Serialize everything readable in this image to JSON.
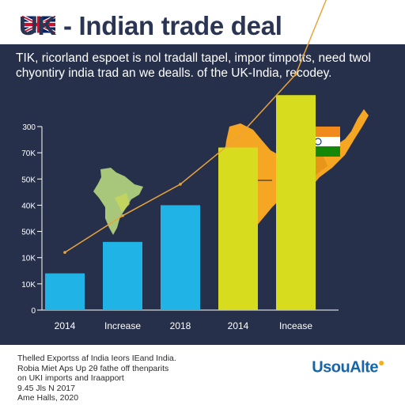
{
  "header": {
    "title_lead": "UK",
    "title": " - Indian trade deal"
  },
  "subtitle": "TIK, ricorland espoet is nol tradall tapel, impor timpotts, need twol chyontiry india trad an we dealls. of the UK-India, recodey.",
  "colors": {
    "panel": "#27304b",
    "bar_blue": "#1fb3e6",
    "bar_yellow": "#d7dc1e",
    "map_orange": "#f5a623",
    "map_green": "#a8c77a",
    "trend": "#e9a53a",
    "brand": "#1565a8"
  },
  "chart_data": {
    "type": "bar",
    "categories": [
      "2014",
      "Increase",
      "2018",
      "2014",
      "Incease"
    ],
    "values": [
      7,
      13,
      20,
      31,
      41
    ],
    "bar_colors": [
      "#1fb3e6",
      "#1fb3e6",
      "#1fb3e6",
      "#d7dc1e",
      "#d7dc1e"
    ],
    "y_ticks": [
      "0",
      "10K",
      "10K",
      "50K",
      "40K",
      "50K",
      "70K",
      "300"
    ],
    "trend_line": [
      {
        "x": 0,
        "y": 11
      },
      {
        "x": 1,
        "y": 18
      },
      {
        "x": 2,
        "y": 24
      },
      {
        "x": 3,
        "y": 33
      },
      {
        "x": 4,
        "y": 45
      },
      {
        "x": 5,
        "y": 72
      }
    ],
    "title": "",
    "xlabel": "",
    "ylabel": "",
    "grid": false
  },
  "footer": {
    "lines": [
      "Thelled Exportss af India Ieors IEand India.",
      "Robia Miet Aps Up 2θ fathe off thenparits",
      "on UKI imports and Iraapport",
      "9.45 Jls N 2017",
      "Ame Halls, 2020"
    ],
    "brand": "UsouAlte"
  },
  "icons": [
    "uk-flag-icon",
    "india-flag-icon",
    "india-map-icon",
    "ashoka-chakra-icon"
  ]
}
